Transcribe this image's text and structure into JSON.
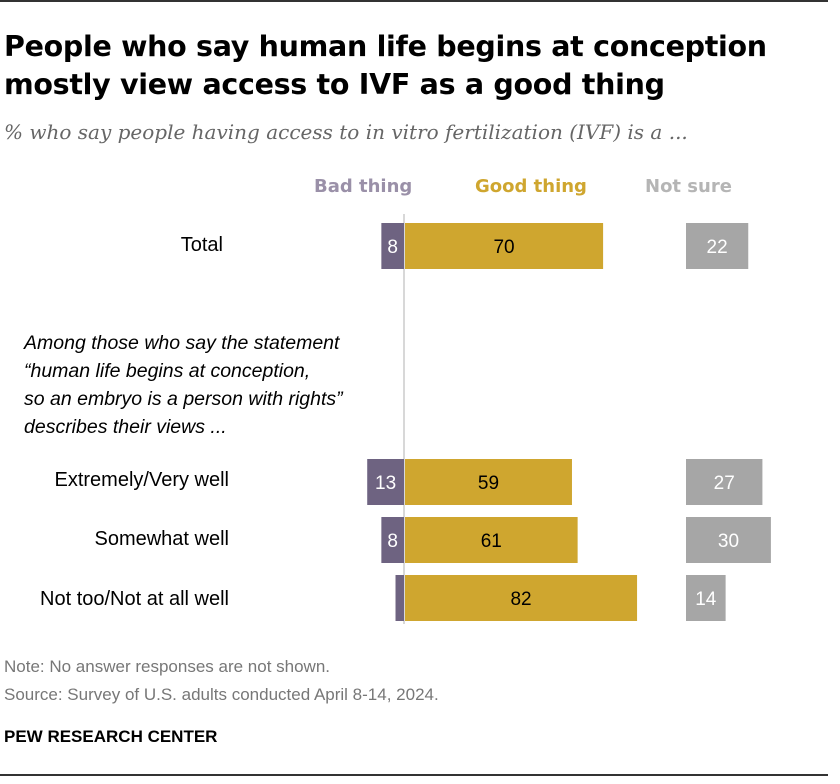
{
  "header": {
    "title_line1": "People who say human life begins at conception",
    "title_line2": "mostly view access to IVF as a good thing",
    "subtitle": "% who say people having access to in vitro fertilization (IVF) is a ..."
  },
  "group_note": {
    "line1": "Among those who say the statement",
    "line2": "“human life begins at conception,",
    "line3": "so an embryo is a person with rights”",
    "line4": "describes their views ..."
  },
  "footer": {
    "note": "Note: No answer responses are not shown.",
    "source": "Source: Survey of U.S. adults conducted April 8-14, 2024.",
    "brand": "PEW RESEARCH CENTER"
  },
  "colors": {
    "bad": "#6e6381",
    "bad_label": "#9a90a8",
    "good": "#cfa62f",
    "not_sure": "#a6a6a6",
    "not_sure_label": "#b5b5b5",
    "axis": "#cccccc"
  },
  "chart_data": {
    "type": "bar",
    "orientation": "horizontal",
    "stacked": "diverging",
    "categories": [
      "Total",
      "Extremely/Very well",
      "Somewhat well",
      "Not too/Not at all well"
    ],
    "series": [
      {
        "name": "Bad thing",
        "values": [
          8,
          13,
          8,
          3
        ],
        "labels": [
          "8",
          "13",
          "8",
          ""
        ]
      },
      {
        "name": "Good thing",
        "values": [
          70,
          59,
          61,
          82
        ],
        "labels": [
          "70",
          "59",
          "61",
          "82"
        ]
      },
      {
        "name": "Not sure",
        "values": [
          22,
          27,
          30,
          14
        ],
        "labels": [
          "22",
          "27",
          "30",
          "14"
        ]
      }
    ]
  }
}
